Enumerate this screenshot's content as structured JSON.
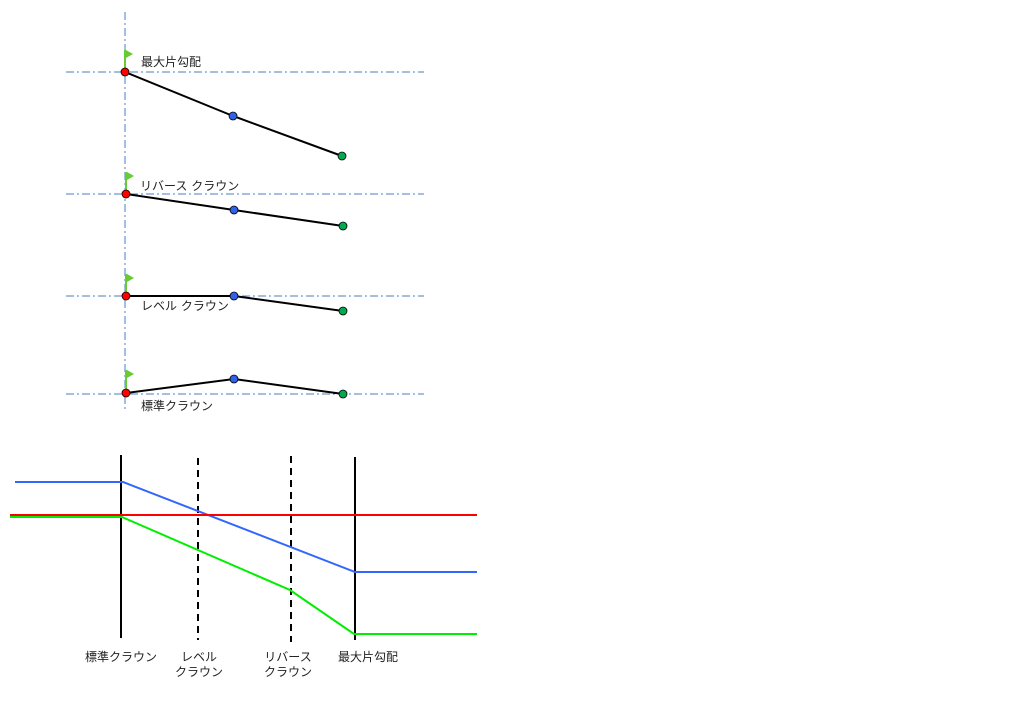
{
  "sections": [
    {
      "label": "最大片勾配"
    },
    {
      "label": "リバース クラウン"
    },
    {
      "label": "レベル クラウン"
    },
    {
      "label": "標準クラウン"
    }
  ],
  "profile": {
    "labels": [
      {
        "line1": "標準クラウン",
        "line2": ""
      },
      {
        "line1": "レベル",
        "line2": "クラウン"
      },
      {
        "line1": "リバース",
        "line2": "クラウン"
      },
      {
        "line1": "最大片勾配",
        "line2": ""
      }
    ]
  },
  "colors": {
    "left_edge": "#3366ff",
    "centerline": "#ff0000",
    "right_edge": "#00ee00",
    "guide": "#4a7fc1",
    "point_red": "#ff0000",
    "point_blue": "#2f62e6",
    "point_green": "#00a850",
    "flag": "#66cc33"
  }
}
